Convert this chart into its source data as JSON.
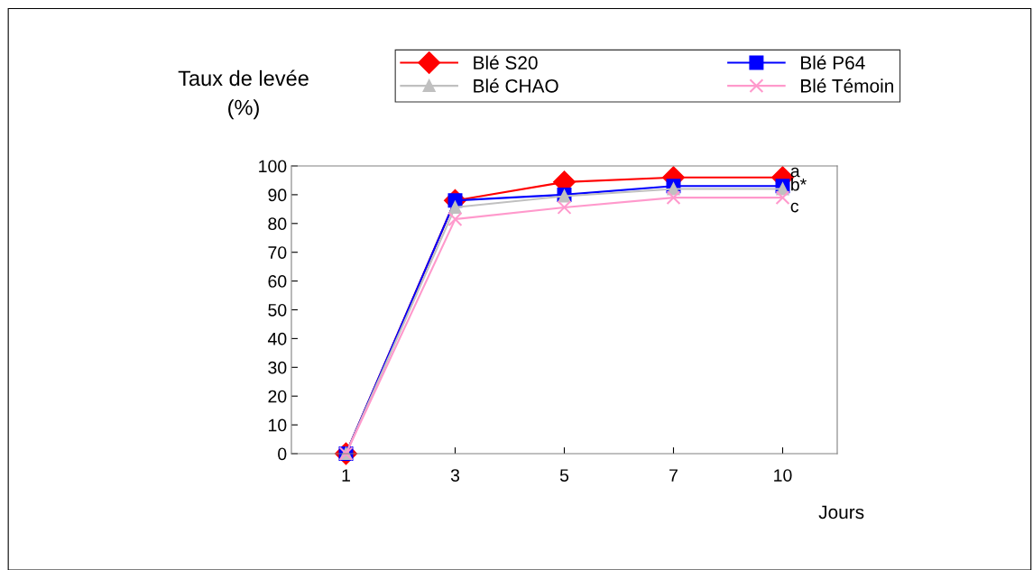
{
  "chart_data": {
    "type": "line",
    "ylabel": "Taux de levée\n(%)",
    "xlabel": "Jours",
    "categories": [
      "1",
      "3",
      "5",
      "7",
      "10"
    ],
    "series": [
      {
        "name": "Blé S20",
        "color": "#ff0000",
        "marker": "diamond",
        "values": [
          0,
          88,
          94.4,
          96,
          96
        ]
      },
      {
        "name": "Blé P64",
        "color": "#0000ff",
        "marker": "square",
        "values": [
          0,
          88,
          90,
          93,
          93
        ]
      },
      {
        "name": "Blé CHAO",
        "color": "#c0c0c0",
        "marker": "triangle",
        "values": [
          0,
          85.6,
          89.5,
          92,
          92
        ]
      },
      {
        "name": "Blé Témoin",
        "color": "#ff99cc",
        "marker": "cross",
        "values": [
          0,
          81.5,
          85.6,
          89,
          89
        ]
      }
    ],
    "annotations": [
      {
        "text": "a",
        "x": "10",
        "y": 96
      },
      {
        "text": "b*",
        "x": "10",
        "y": 93
      },
      {
        "text": "c",
        "x": "10",
        "y": 89
      }
    ],
    "ylim": [
      0,
      100
    ],
    "yticks": [
      0,
      10,
      20,
      30,
      40,
      50,
      60,
      70,
      80,
      90,
      100
    ],
    "grid": false,
    "legend": "top right"
  }
}
